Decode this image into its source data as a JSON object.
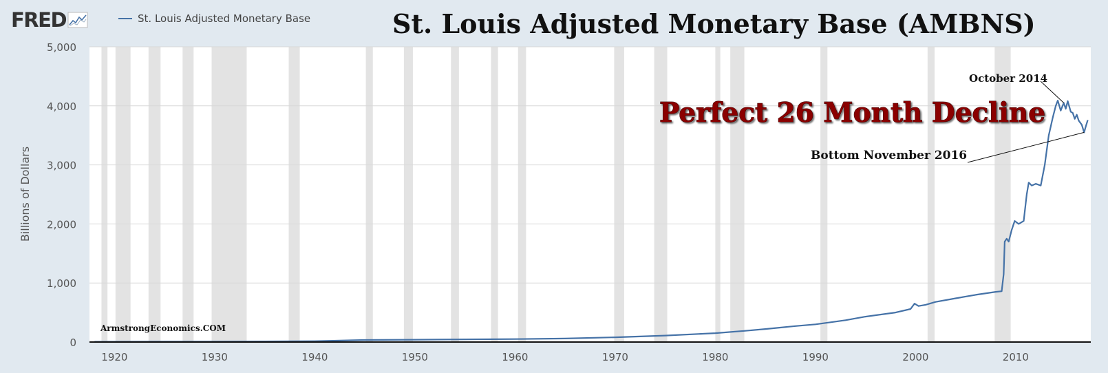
{
  "header": {
    "logo": "FRED",
    "logo_icon": "sparkline-chart-icon",
    "legend_label": "St. Louis Adjusted Monetary Base"
  },
  "colors": {
    "background": "#e1e9f0",
    "plot_background": "#ffffff",
    "series": "#4572a7",
    "recession": "#e3e3e3",
    "headline": "#8b0000"
  },
  "chart_data": {
    "type": "line",
    "title": "St. Louis Adjusted Monetary Base (AMBNS)",
    "ylabel": "Billions of Dollars",
    "xlabel": "",
    "xlim": [
      1917.5,
      2017.5
    ],
    "ylim": [
      0,
      5000
    ],
    "x_ticks": [
      1920,
      1930,
      1940,
      1950,
      1960,
      1970,
      1980,
      1990,
      2000,
      2010
    ],
    "y_ticks": [
      0,
      1000,
      2000,
      3000,
      4000,
      5000
    ],
    "y_tick_labels": [
      "0",
      "1,000",
      "2,000",
      "3,000",
      "4,000",
      "5,000"
    ],
    "grid": true,
    "legend": "top-left",
    "recessions": [
      [
        1918.7,
        1919.3
      ],
      [
        1920.1,
        1921.6
      ],
      [
        1923.4,
        1924.6
      ],
      [
        1926.8,
        1927.9
      ],
      [
        1929.7,
        1933.2
      ],
      [
        1937.4,
        1938.5
      ],
      [
        1945.1,
        1945.8
      ],
      [
        1948.9,
        1949.8
      ],
      [
        1953.6,
        1954.4
      ],
      [
        1957.6,
        1958.3
      ],
      [
        1960.3,
        1961.1
      ],
      [
        1969.9,
        1970.9
      ],
      [
        1973.9,
        1975.2
      ],
      [
        1980.0,
        1980.5
      ],
      [
        1981.5,
        1982.9
      ],
      [
        1990.5,
        1991.2
      ],
      [
        2001.2,
        2001.9
      ],
      [
        2007.9,
        2009.5
      ]
    ],
    "series": [
      {
        "x": [
          1918,
          1925,
          1930,
          1935,
          1940,
          1945,
          1950,
          1955,
          1960,
          1965,
          1970,
          1975,
          1980,
          1983,
          1985,
          1988,
          1990,
          1993,
          1995,
          1998,
          1999.5,
          1999.9,
          2000.3,
          2001,
          2002,
          2004,
          2006,
          2008.0,
          2008.6,
          2008.8,
          2008.9,
          2009.1,
          2009.3,
          2009.6,
          2009.9,
          2010.3,
          2010.8,
          2011.1,
          2011.3,
          2011.6,
          2012,
          2012.5,
          2012.9,
          2013.3,
          2013.7,
          2014.0,
          2014.2,
          2014.5,
          2014.8,
          2015.0,
          2015.2,
          2015.5,
          2015.7,
          2015.9,
          2016.1,
          2016.3,
          2016.6,
          2016.83,
          2017.0,
          2017.2
        ],
        "values": [
          5,
          7,
          8,
          10,
          15,
          35,
          40,
          45,
          50,
          60,
          80,
          110,
          150,
          190,
          220,
          270,
          300,
          370,
          430,
          500,
          560,
          650,
          610,
          630,
          680,
          740,
          800,
          850,
          860,
          1150,
          1700,
          1750,
          1700,
          1900,
          2050,
          2000,
          2050,
          2500,
          2700,
          2650,
          2680,
          2650,
          3000,
          3500,
          3800,
          4000,
          4090,
          3920,
          4050,
          3950,
          4080,
          3900,
          3880,
          3780,
          3850,
          3750,
          3680,
          3550,
          3650,
          3760
        ]
      }
    ],
    "annotations": [
      {
        "text": "October 2014",
        "x": 2014.8,
        "y": 4050
      },
      {
        "text": "Bottom November 2016",
        "x": 2016.83,
        "y": 3550
      }
    ]
  },
  "overlay": {
    "headline": "Perfect 26 Month Decline",
    "watermark": "ArmstrongEconomics.COM"
  }
}
